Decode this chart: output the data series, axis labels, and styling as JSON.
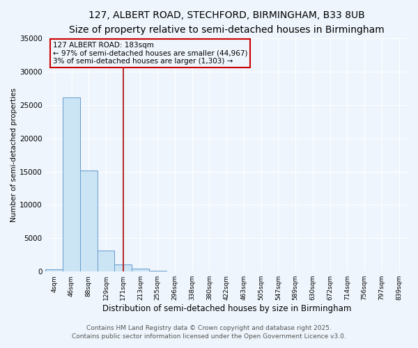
{
  "title": "127, ALBERT ROAD, STECHFORD, BIRMINGHAM, B33 8UB",
  "subtitle": "Size of property relative to semi-detached houses in Birmingham",
  "xlabel": "Distribution of semi-detached houses by size in Birmingham",
  "ylabel": "Number of semi-detached properties",
  "categories": [
    "4sqm",
    "46sqm",
    "88sqm",
    "129sqm",
    "171sqm",
    "213sqm",
    "255sqm",
    "296sqm",
    "338sqm",
    "380sqm",
    "422sqm",
    "463sqm",
    "505sqm",
    "547sqm",
    "589sqm",
    "630sqm",
    "672sqm",
    "714sqm",
    "756sqm",
    "797sqm",
    "839sqm"
  ],
  "values": [
    370,
    26100,
    15200,
    3200,
    1100,
    420,
    130,
    50,
    5,
    2,
    1,
    0,
    0,
    0,
    0,
    0,
    0,
    0,
    0,
    0,
    0
  ],
  "bar_color": "#cce5f5",
  "bar_edgecolor": "#6699cc",
  "vline_x": 4,
  "vline_color": "#aa0000",
  "ylim": [
    0,
    35000
  ],
  "yticks": [
    0,
    5000,
    10000,
    15000,
    20000,
    25000,
    30000,
    35000
  ],
  "ytick_labels": [
    "0",
    "5000",
    "10000",
    "15000",
    "20000",
    "25000",
    "30000",
    "35000"
  ],
  "annotation_title": "127 ALBERT ROAD: 183sqm",
  "annotation_line1": "← 97% of semi-detached houses are smaller (44,967)",
  "annotation_line2": "3% of semi-detached houses are larger (1,303) →",
  "annotation_edgecolor": "#cc0000",
  "footer1": "Contains HM Land Registry data © Crown copyright and database right 2025.",
  "footer2": "Contains public sector information licensed under the Open Government Licence v3.0.",
  "bg_color": "#eef5fc",
  "title_fontsize": 10,
  "subtitle_fontsize": 9,
  "footer_fontsize": 6.5
}
